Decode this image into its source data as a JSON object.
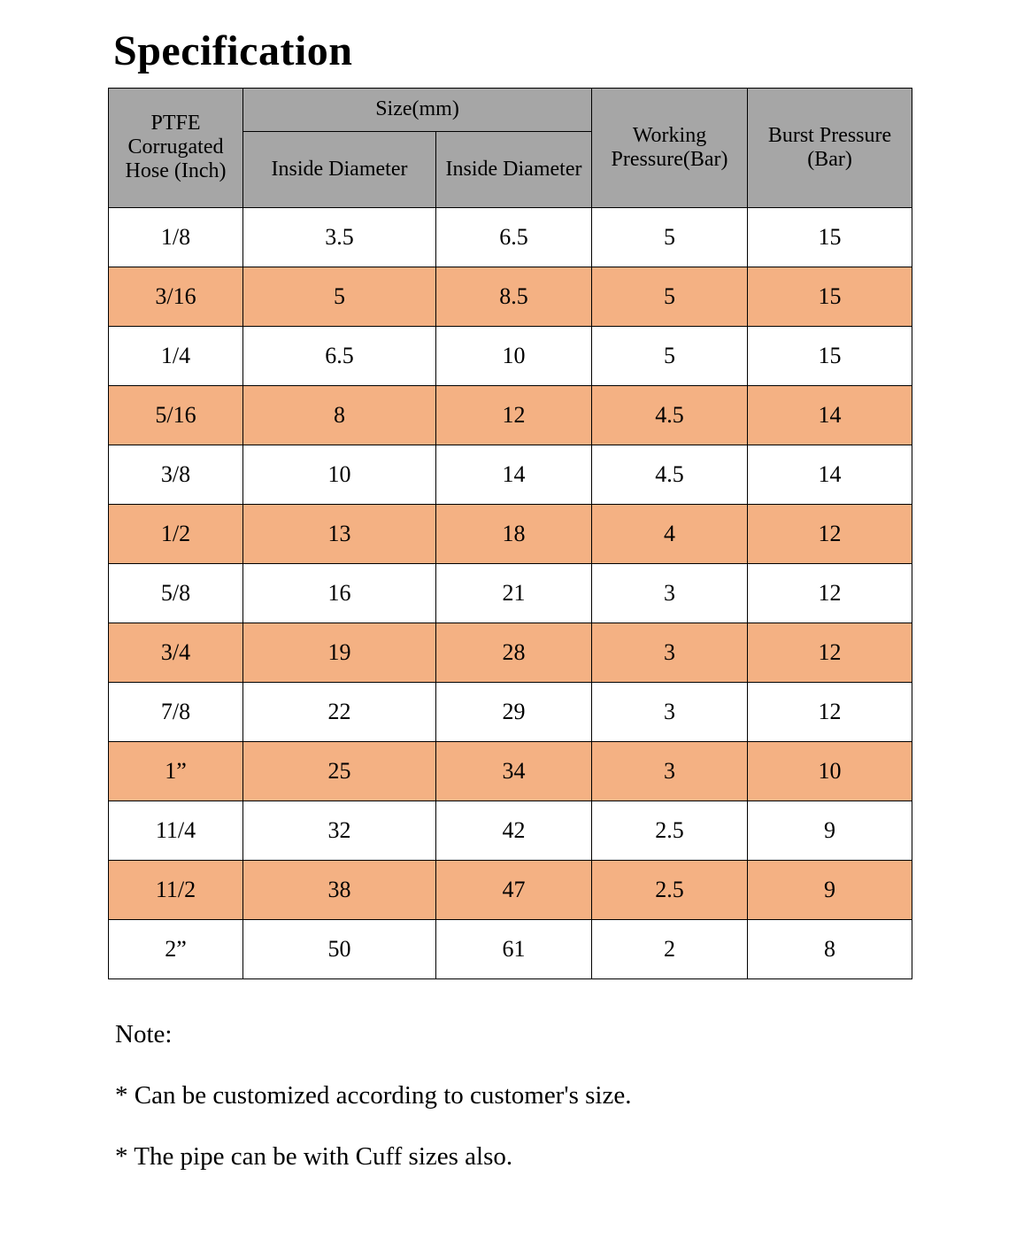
{
  "page": {
    "title": "Specification"
  },
  "table": {
    "header": {
      "hose_column": "PTFE Corrugated Hose (Inch)",
      "size_group": "Size(mm)",
      "inside_diameter_1": "Inside Diameter",
      "inside_diameter_2": "Inside Diameter",
      "working_pressure": "Working Pressure(Bar)",
      "burst_pressure": "Burst Pressure (Bar)"
    },
    "rows": [
      {
        "hose": "1/8",
        "id1": "3.5",
        "id2": "6.5",
        "working": "5",
        "burst": "15"
      },
      {
        "hose": "3/16",
        "id1": "5",
        "id2": "8.5",
        "working": "5",
        "burst": "15"
      },
      {
        "hose": "1/4",
        "id1": "6.5",
        "id2": "10",
        "working": "5",
        "burst": "15"
      },
      {
        "hose": "5/16",
        "id1": "8",
        "id2": "12",
        "working": "4.5",
        "burst": "14"
      },
      {
        "hose": "3/8",
        "id1": "10",
        "id2": "14",
        "working": "4.5",
        "burst": "14"
      },
      {
        "hose": "1/2",
        "id1": "13",
        "id2": "18",
        "working": "4",
        "burst": "12"
      },
      {
        "hose": "5/8",
        "id1": "16",
        "id2": "21",
        "working": "3",
        "burst": "12"
      },
      {
        "hose": "3/4",
        "id1": "19",
        "id2": "28",
        "working": "3",
        "burst": "12"
      },
      {
        "hose": "7/8",
        "id1": "22",
        "id2": "29",
        "working": "3",
        "burst": "12"
      },
      {
        "hose": "1”",
        "id1": "25",
        "id2": "34",
        "working": "3",
        "burst": "10"
      },
      {
        "hose": "11/4",
        "id1": "32",
        "id2": "42",
        "working": "2.5",
        "burst": "9"
      },
      {
        "hose": "11/2",
        "id1": "38",
        "id2": "47",
        "working": "2.5",
        "burst": "9"
      },
      {
        "hose": "2”",
        "id1": "50",
        "id2": "61",
        "working": "2",
        "burst": "8"
      }
    ]
  },
  "notes": {
    "label": "Note:",
    "items": [
      "* Can be customized according to customer's size.",
      "* The pipe can be with Cuff sizes also."
    ]
  },
  "colors": {
    "header_bg": "#a6a6a6",
    "alt_row_bg": "#f4b183",
    "border": "#000000",
    "text": "#000000"
  }
}
